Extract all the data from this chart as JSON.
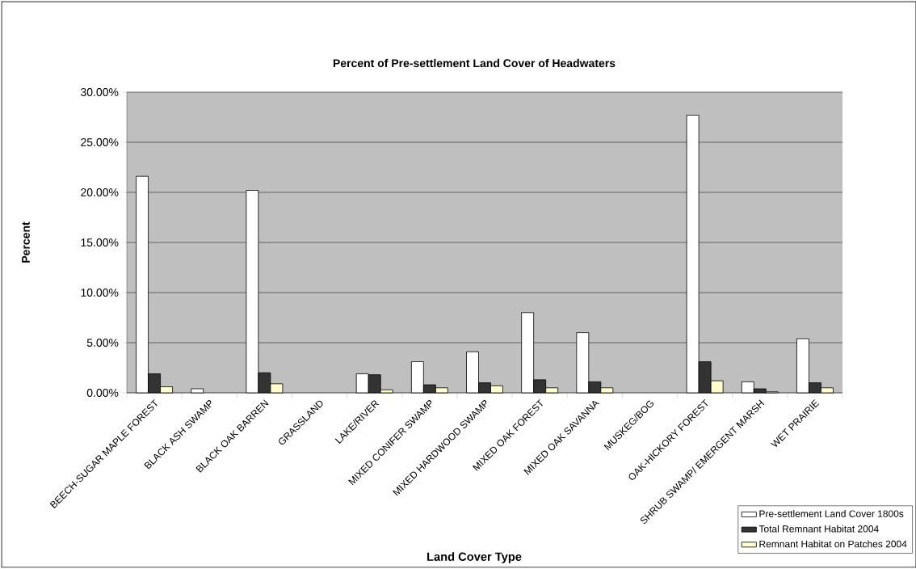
{
  "chart_data": {
    "type": "bar",
    "title": "Percent of Pre-settlement Land Cover of Headwaters",
    "xlabel": "Land Cover Type",
    "ylabel": "Percent",
    "categories": [
      "BEECH-SUGAR MAPLE FOREST",
      "BLACK ASH SWAMP",
      "BLACK OAK BARREN",
      "GRASSLAND",
      "LAKE/RIVER",
      "MIXED CONIFER SWAMP",
      "MIXED HARDWOOD SWAMP",
      "MIXED OAK FOREST",
      "MIXED OAK SAVANNA",
      "MUSKEG/BOG",
      "OAK-HICKORY FOREST",
      "SHRUB SWAMP/ EMERGENT MARSH",
      "WET PRAIRIE"
    ],
    "series": [
      {
        "name": "Pre-settlement Land Cover 1800s",
        "color": "#ffffff",
        "values": [
          21.6,
          0.4,
          20.2,
          0,
          1.9,
          3.1,
          4.1,
          8.0,
          6.0,
          0,
          27.7,
          1.1,
          5.4
        ]
      },
      {
        "name": "Total Remnant Habitat 2004",
        "color": "#333333",
        "values": [
          1.9,
          0,
          2.0,
          0,
          1.8,
          0.8,
          1.0,
          1.3,
          1.1,
          0,
          3.1,
          0.4,
          1.0
        ]
      },
      {
        "name": "Remnant Habitat on Patches 2004",
        "color": "#ffffcc",
        "values": [
          0.6,
          0,
          0.9,
          0,
          0.3,
          0.5,
          0.7,
          0.5,
          0.5,
          0,
          1.2,
          0.1,
          0.5
        ]
      }
    ],
    "ylim": [
      0,
      30
    ],
    "yticks": [
      {
        "value": 0,
        "label": "0.00%"
      },
      {
        "value": 5,
        "label": "5.00%"
      },
      {
        "value": 10,
        "label": "10.00%"
      },
      {
        "value": 15,
        "label": "15.00%"
      },
      {
        "value": 20,
        "label": "20.00%"
      },
      {
        "value": 25,
        "label": "25.00%"
      },
      {
        "value": 30,
        "label": "30.00%"
      }
    ],
    "grid": "y",
    "legend": "bottom right"
  }
}
